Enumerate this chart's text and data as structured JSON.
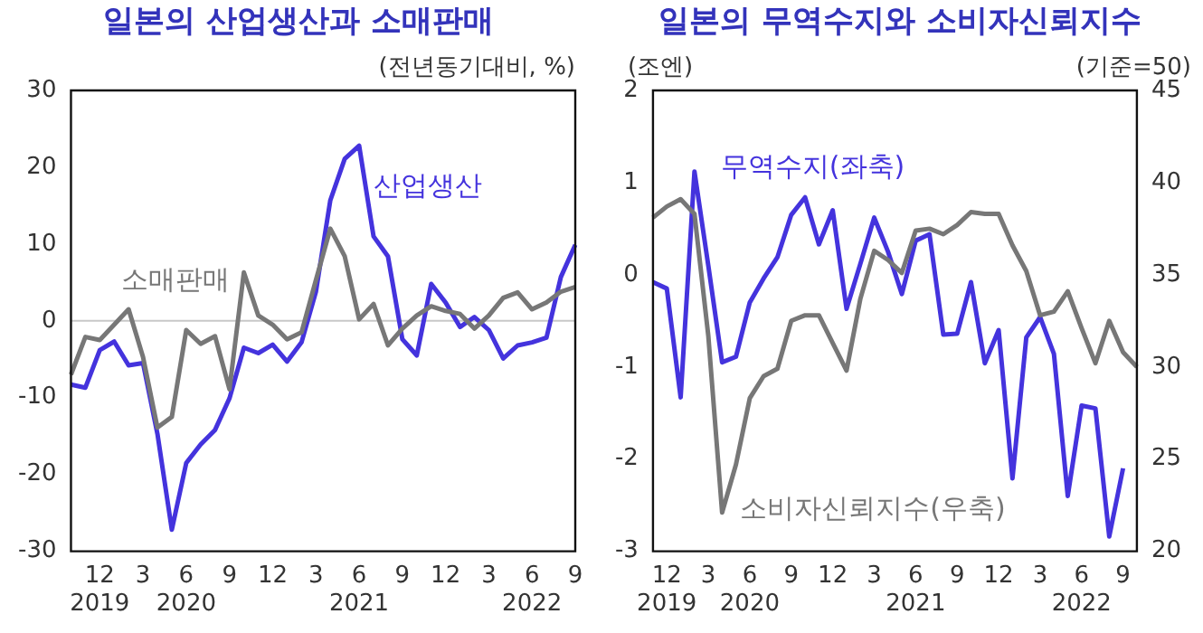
{
  "chart_data": [
    {
      "type": "line",
      "title": "일본의 산업생산과 소매판매",
      "ylabel": "(전년동기대비, %)",
      "categories": [
        null,
        null,
        "12\n2019",
        null,
        null,
        "3",
        null,
        null,
        "6\n2020",
        null,
        null,
        "9",
        null,
        null,
        "12",
        null,
        null,
        "3",
        null,
        null,
        "6\n2021",
        null,
        null,
        "9",
        null,
        null,
        "12",
        null,
        null,
        "3",
        null,
        null,
        "6\n2022",
        null,
        null,
        "9"
      ],
      "series": [
        {
          "name": "산업생산",
          "color": "#4433dd",
          "values": [
            -8.3,
            -8.7,
            -3.8,
            -2.7,
            -5.8,
            -5.5,
            -14.7,
            -27.2,
            -18.5,
            -16.1,
            -14.2,
            -10.1,
            -3.5,
            -4.2,
            -3.1,
            -5.3,
            -2.8,
            3.8,
            15.7,
            21.1,
            22.8,
            11.0,
            8.4,
            -2.4,
            -4.5,
            4.8,
            2.4,
            -0.8,
            0.5,
            -1.2,
            -4.9,
            -3.2,
            -2.8,
            -2.2,
            5.7,
            9.9
          ]
        },
        {
          "name": "소매판매",
          "color": "#777777",
          "values": [
            -7.0,
            -2.1,
            -2.5,
            -0.5,
            1.5,
            -4.7,
            -13.9,
            -12.5,
            -1.2,
            -3.0,
            -2.0,
            -8.9,
            6.3,
            0.7,
            -0.5,
            -2.4,
            -1.5,
            5.3,
            12.0,
            8.4,
            0.2,
            2.2,
            -3.2,
            -1.0,
            0.7,
            1.9,
            1.3,
            0.9,
            -1.0,
            0.7,
            3.0,
            3.7,
            1.5,
            2.4,
            3.8,
            4.4
          ]
        }
      ],
      "ylim": [
        -30,
        30
      ],
      "yticks": [
        -30,
        -20,
        -10,
        0,
        10,
        20,
        30
      ],
      "grid": false,
      "legend": false,
      "marker": "none",
      "ref_lines": [
        {
          "axis": "y",
          "value": 0,
          "color": "#c8c8c8"
        }
      ]
    },
    {
      "type": "line",
      "title": "일본의 무역수지와 소비자신뢰지수",
      "ylabel": "(조엔)",
      "y2label": "(기준=50)",
      "categories": [
        null,
        "12\n2019",
        null,
        null,
        "3",
        null,
        null,
        "6\n2020",
        null,
        null,
        "9",
        null,
        null,
        "12",
        null,
        null,
        "3",
        null,
        null,
        "6\n2021",
        null,
        null,
        "9",
        null,
        null,
        "12",
        null,
        null,
        "3",
        null,
        null,
        "6\n2022",
        null,
        null,
        "9",
        null
      ],
      "series": [
        {
          "name": "무역수지(좌축)",
          "color": "#4433dd",
          "values": [
            -0.08,
            -0.15,
            -1.33,
            1.12,
            0.1,
            -0.95,
            -0.89,
            -0.3,
            -0.04,
            0.19,
            0.65,
            0.84,
            0.33,
            0.7,
            -0.37,
            0.12,
            0.62,
            0.25,
            -0.21,
            0.37,
            0.44,
            -0.65,
            -0.64,
            -0.08,
            -0.96,
            -0.6,
            -2.21,
            -0.68,
            -0.46,
            -0.86,
            -2.4,
            -1.42,
            -1.45,
            -2.84,
            -2.1,
            null
          ]
        },
        {
          "name": "소비자신뢰지수(우축)",
          "color": "#777777",
          "axis": "y2",
          "values": [
            38.1,
            38.7,
            39.1,
            38.3,
            31.7,
            22.1,
            24.7,
            28.3,
            29.5,
            29.9,
            32.5,
            32.8,
            32.8,
            31.3,
            29.8,
            33.7,
            36.3,
            35.8,
            35.1,
            37.4,
            37.5,
            37.2,
            37.7,
            38.4,
            38.3,
            38.3,
            36.6,
            35.2,
            32.8,
            33.0,
            34.1,
            32.1,
            30.2,
            32.5,
            30.8,
            30.0
          ]
        }
      ],
      "ylim": [
        -3,
        2
      ],
      "yticks": [
        -3,
        -2,
        -1,
        0,
        1,
        2
      ],
      "y2lim": [
        20,
        45
      ],
      "y2ticks": [
        20,
        25,
        30,
        35,
        40,
        45
      ],
      "grid": false,
      "legend": false,
      "marker": "none"
    }
  ]
}
